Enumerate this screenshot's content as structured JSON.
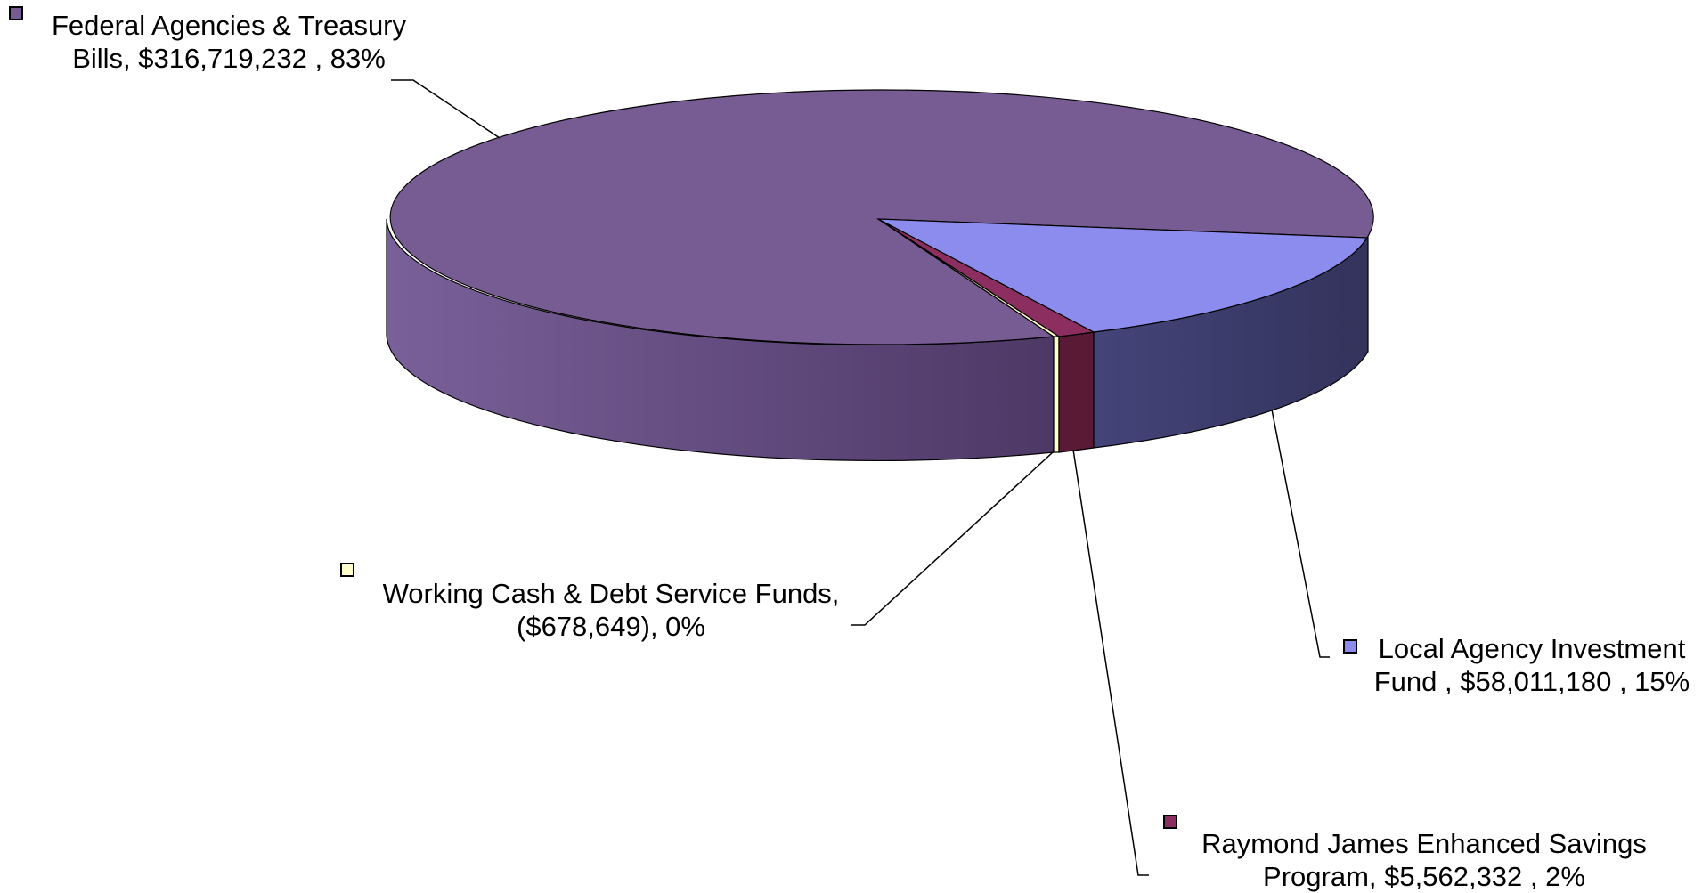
{
  "chart_data": {
    "type": "pie",
    "subtype": "3d-pie",
    "legend": "data labels beside slices with color keys",
    "slices": [
      {
        "name": "Federal Agencies & Treasury Bills",
        "label_line1": "Federal Agencies & Treasury",
        "label_line2": "Bills, $316,719,232 , 83%",
        "value": 316719232,
        "percent": 83,
        "color": "#775C93"
      },
      {
        "name": "Local Agency Investment Fund",
        "label_line1": "Local Agency Investment",
        "label_line2": "Fund , $58,011,180 , 15%",
        "value": 58011180,
        "percent": 15,
        "color": "#8C8CEE"
      },
      {
        "name": "Raymond James Enhanced Savings Program",
        "label_line1": "Raymond James Enhanced Savings",
        "label_line2": "Program, $5,562,332 , 2%",
        "value": 5562332,
        "percent": 2,
        "color": "#8C2E60"
      },
      {
        "name": "Working Cash & Debt Service Funds",
        "label_line1": "Working Cash & Debt Service Funds,",
        "label_line2": "($678,649), 0%",
        "value": -678649,
        "percent": 0,
        "color": "#FFFFCC"
      }
    ]
  }
}
